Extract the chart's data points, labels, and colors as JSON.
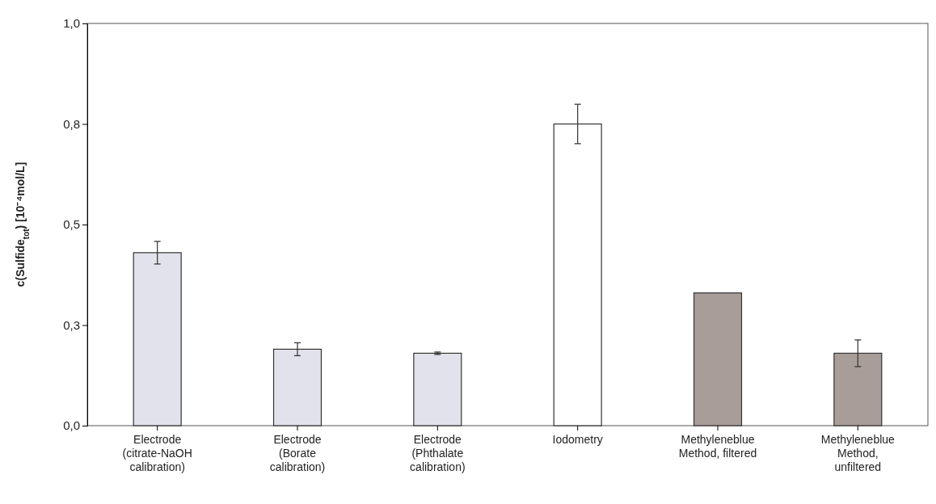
{
  "chart_data": {
    "type": "bar",
    "ylabel": "c(Sulfide$_{tot}$) [10⁻⁴mol/L]",
    "categories": [
      "Electrode\n(citrate-NaOH\ncalibration)",
      "Electrode\n(Borate\ncalibration)",
      "Electrode\n(Phthalate\ncalibration)",
      "Iodometry",
      "Methyleneblue\nMethod, filtered",
      "Methyleneblue\nMethod,\nunfiltered"
    ],
    "values": [
      0.43,
      0.19,
      0.18,
      0.75,
      0.33,
      0.18
    ],
    "errors": [
      0.028,
      0.016,
      0.003,
      0.049,
      null,
      0.033
    ],
    "colors": [
      "#e2e2ec",
      "#e2e2ec",
      "#e2e2ec",
      "#ffffff",
      "#a99d99",
      "#a99d99"
    ],
    "ylim": [
      0,
      1
    ],
    "yticks": [
      {
        "value": 0,
        "label": "0,0"
      },
      {
        "value": 0.25,
        "label": "0,3"
      },
      {
        "value": 0.5,
        "label": "0,5"
      },
      {
        "value": 0.75,
        "label": "0,8"
      },
      {
        "value": 1,
        "label": "1,0"
      }
    ],
    "grid": false
  }
}
